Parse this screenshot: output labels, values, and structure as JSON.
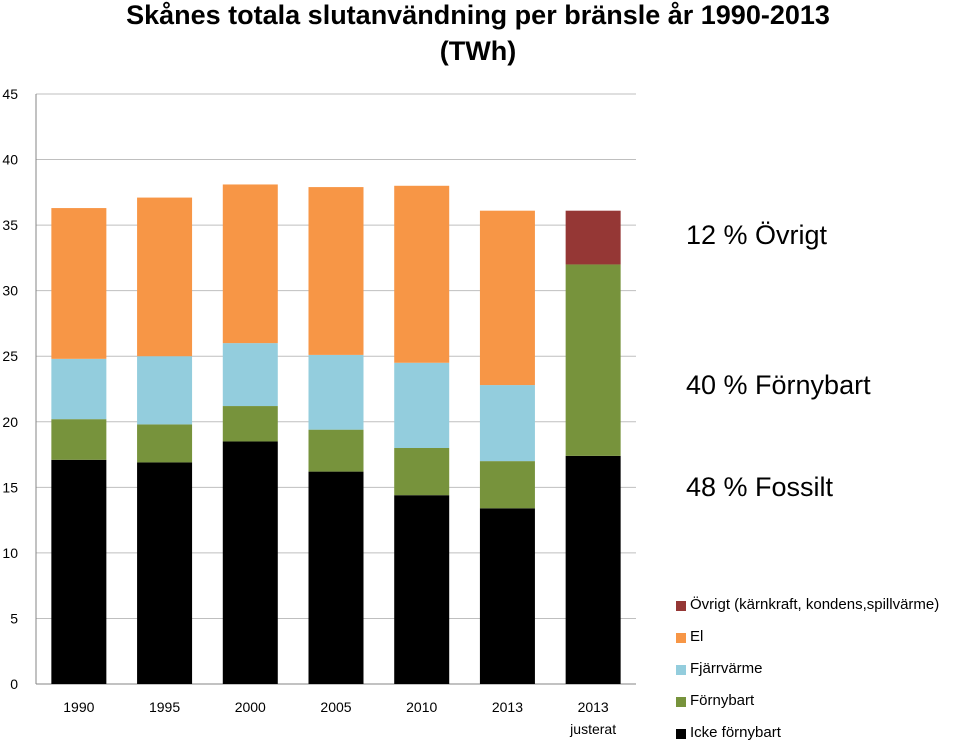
{
  "title_line1": "Skånes totala slutanvändning per bränsle år 1990-2013",
  "title_line2": "(TWh)",
  "annotations": [
    "12 % Övrigt",
    "40 % Förnybart",
    "48 % Fossilt"
  ],
  "chart_data": {
    "type": "bar",
    "stacked": true,
    "title": "Skånes totala slutanvändning per bränsle år 1990-2013 (TWh)",
    "categories": [
      [
        "1990"
      ],
      [
        "1995"
      ],
      [
        "2000"
      ],
      [
        "2005"
      ],
      [
        "2010"
      ],
      [
        "2013"
      ],
      [
        "2013",
        "justerat"
      ]
    ],
    "ylim": [
      0,
      45
    ],
    "yticks": [
      0,
      5,
      10,
      15,
      20,
      25,
      30,
      35,
      40,
      45
    ],
    "grid": true,
    "legend_position": "bottom-right",
    "series": [
      {
        "name": "Icke  förnybart",
        "color": "#000000",
        "values": [
          17.1,
          16.9,
          18.5,
          16.2,
          14.4,
          13.4,
          17.4
        ]
      },
      {
        "name": "Förnybart",
        "color": "#77933C",
        "values": [
          3.1,
          2.9,
          2.7,
          3.2,
          3.6,
          3.6,
          14.6
        ]
      },
      {
        "name": "Fjärrvärme",
        "color": "#93CDDD",
        "values": [
          4.6,
          5.2,
          4.8,
          5.7,
          6.5,
          5.8,
          0
        ]
      },
      {
        "name": "El",
        "color": "#F79646",
        "values": [
          11.5,
          12.1,
          12.1,
          12.8,
          13.5,
          13.3,
          0
        ]
      },
      {
        "name": "Övrigt (kärnkraft, kondens,spillvärme)",
        "color": "#953735",
        "values": [
          0,
          0,
          0,
          0,
          0,
          0,
          4.1
        ]
      }
    ],
    "legend_order": [
      4,
      3,
      2,
      1,
      0
    ]
  }
}
